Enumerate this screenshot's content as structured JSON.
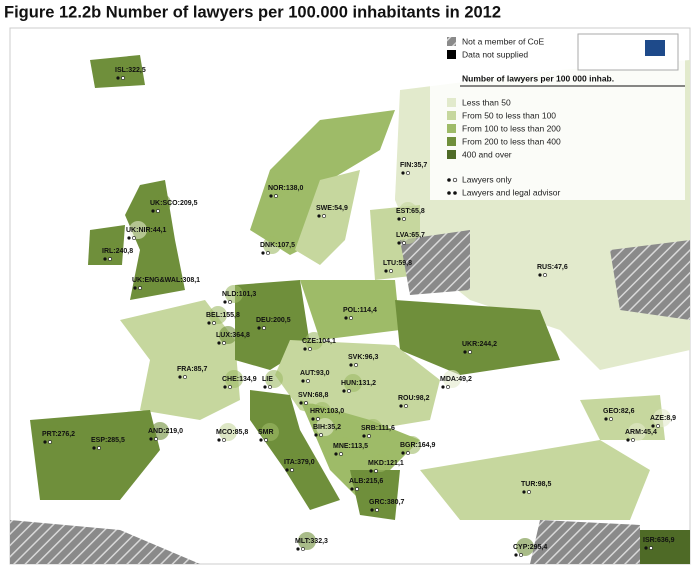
{
  "title": "Figure 12.2b Number of lawyers per 100.000 inhabitants in 2012",
  "legend": {
    "not_member": "Not a member of CoE",
    "no_data": "Data not supplied",
    "heading": "Number of lawyers per 100 000 inhab.",
    "classes": [
      {
        "label": "Less than 50",
        "color": "#e2eacc"
      },
      {
        "label": "From 50 to less than 100",
        "color": "#c6d79e"
      },
      {
        "label": "From 100 to less than 200",
        "color": "#9ebb68"
      },
      {
        "label": "From 200 to less than 400",
        "color": "#6f8f3b"
      },
      {
        "label": "400 and over",
        "color": "#4e6a26"
      }
    ],
    "lawyers_only": "Lawyers only",
    "lawyers_and_advisors": "Lawyers and legal advisor"
  },
  "countries": [
    {
      "label": "ISL:322,5",
      "color": "#6f8f3b"
    },
    {
      "label": "FIN:35,7",
      "color": "#e2eacc"
    },
    {
      "label": "NOR:138,0",
      "color": "#9ebb68"
    },
    {
      "label": "SWE:54,9",
      "color": "#c6d79e"
    },
    {
      "label": "EST:65,8",
      "color": "#c6d79e"
    },
    {
      "label": "UK:SCO:209,5",
      "color": "#6f8f3b"
    },
    {
      "label": "UK:NIR:44,1",
      "color": "#e2eacc"
    },
    {
      "label": "LVA:65,7",
      "color": "#c6d79e"
    },
    {
      "label": "IRL:240,8",
      "color": "#6f8f3b"
    },
    {
      "label": "DNK:107,5",
      "color": "#9ebb68"
    },
    {
      "label": "LTU:59,8",
      "color": "#c6d79e"
    },
    {
      "label": "RUS:47,6",
      "color": "#e2eacc"
    },
    {
      "label": "UK:ENG&WAL:308,1",
      "color": "#6f8f3b"
    },
    {
      "label": "NLD:101,3",
      "color": "#9ebb68"
    },
    {
      "label": "POL:114,4",
      "color": "#9ebb68"
    },
    {
      "label": "BEL:155,8",
      "color": "#9ebb68"
    },
    {
      "label": "DEU:200,5",
      "color": "#6f8f3b"
    },
    {
      "label": "LUX:364,8",
      "color": "#6f8f3b"
    },
    {
      "label": "CZE:104,1",
      "color": "#9ebb68"
    },
    {
      "label": "UKR:244,2",
      "color": "#6f8f3b"
    },
    {
      "label": "SVK:96,3",
      "color": "#c6d79e"
    },
    {
      "label": "FRA:85,7",
      "color": "#c6d79e"
    },
    {
      "label": "AUT:93,0",
      "color": "#c6d79e"
    },
    {
      "label": "CHE:134,9",
      "color": "#9ebb68"
    },
    {
      "label": "LIE",
      "color": "#9ebb68"
    },
    {
      "label": "HUN:131,2",
      "color": "#9ebb68"
    },
    {
      "label": "MDA:49,2",
      "color": "#e2eacc"
    },
    {
      "label": "SVN:68,8",
      "color": "#c6d79e"
    },
    {
      "label": "ROU:98,2",
      "color": "#c6d79e"
    },
    {
      "label": "HRV:103,0",
      "color": "#9ebb68"
    },
    {
      "label": "GEO:82,6",
      "color": "#c6d79e"
    },
    {
      "label": "AZE:8,9",
      "color": "#e2eacc"
    },
    {
      "label": "BIH:35,2",
      "color": "#e2eacc"
    },
    {
      "label": "SRB:111,6",
      "color": "#9ebb68"
    },
    {
      "label": "PRT:276,2",
      "color": "#6f8f3b"
    },
    {
      "label": "AND:219,0",
      "color": "#6f8f3b"
    },
    {
      "label": "MCO:85,8",
      "color": "#c6d79e"
    },
    {
      "label": "ARM:45,4",
      "color": "#e2eacc"
    },
    {
      "label": "SMR",
      "color": "#9ebb68"
    },
    {
      "label": "ESP:285,5",
      "color": "#6f8f3b"
    },
    {
      "label": "BGR:164,9",
      "color": "#9ebb68"
    },
    {
      "label": "MNE:113,5",
      "color": "#9ebb68"
    },
    {
      "label": "MKD:121,1",
      "color": "#9ebb68"
    },
    {
      "label": "ITA:379,0",
      "color": "#6f8f3b"
    },
    {
      "label": "ALB:215,6",
      "color": "#6f8f3b"
    },
    {
      "label": "TUR:98,5",
      "color": "#c6d79e"
    },
    {
      "label": "GRC:380,7",
      "color": "#6f8f3b"
    },
    {
      "label": "MLT:332,3",
      "color": "#6f8f3b"
    },
    {
      "label": "CYP:295,4",
      "color": "#6f8f3b"
    },
    {
      "label": "ISR:636,9",
      "color": "#4e6a26"
    }
  ]
}
